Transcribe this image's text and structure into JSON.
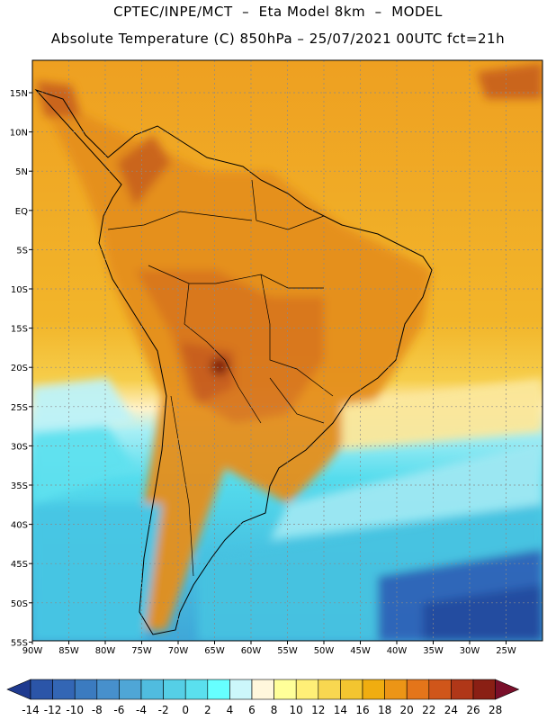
{
  "header": {
    "line1": "CPTEC/INPE/MCT  –  Eta Model 8km  –  MODEL",
    "line2": "Absolute Temperature (C) 850hPa – 25/07/2021 00UTC fct=21h"
  },
  "map": {
    "lat_labels": [
      "15N",
      "10N",
      "5N",
      "EQ",
      "5S",
      "10S",
      "15S",
      "20S",
      "25S",
      "30S",
      "35S",
      "40S",
      "45S",
      "50S",
      "55S"
    ],
    "lon_labels": [
      "90W",
      "85W",
      "80W",
      "75W",
      "70W",
      "65W",
      "60W",
      "55W",
      "50W",
      "45W",
      "40W",
      "35W",
      "30W",
      "25W"
    ],
    "field_colors": {
      "hot": "#e8941f",
      "warm": "#f0b020",
      "mild": "#f5cc45",
      "cool": "#b8f0f5",
      "cold": "#45d2e8",
      "very_cold": "#2a6ec0",
      "land_hot": "#d56a18",
      "peak": "#7a1510"
    }
  },
  "colorbar": {
    "ticks": [
      "-14",
      "-12",
      "-10",
      "-8",
      "-6",
      "-4",
      "-2",
      "0",
      "2",
      "4",
      "6",
      "8",
      "10",
      "12",
      "14",
      "16",
      "18",
      "20",
      "22",
      "24",
      "26",
      "28"
    ],
    "colors": [
      "#1f3a8f",
      "#2b55a8",
      "#3366b5",
      "#3b7bc0",
      "#4790cc",
      "#4fa6d6",
      "#50bcdf",
      "#55cfe6",
      "#5ae0ee",
      "#66ffff",
      "#ccf7fb",
      "#fff7dc",
      "#ffff99",
      "#ffef77",
      "#f8d750",
      "#f3c530",
      "#f0ad10",
      "#ec9516",
      "#e4751a",
      "#d0561a",
      "#b03718",
      "#8a1f14",
      "#7a0f2a"
    ]
  }
}
